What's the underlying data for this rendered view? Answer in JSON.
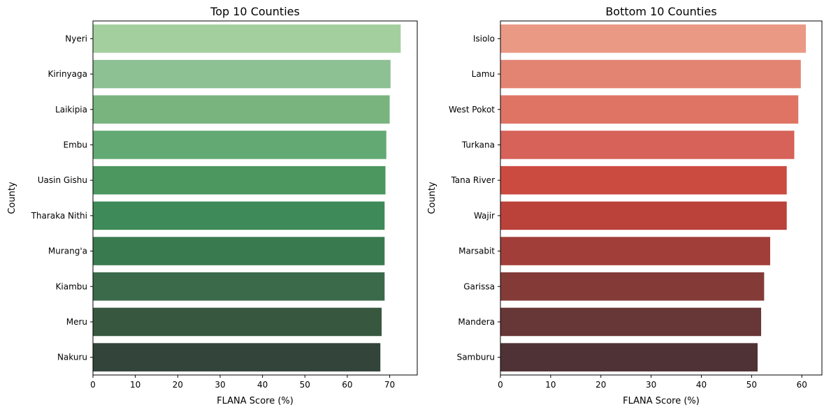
{
  "chart_data": [
    {
      "type": "bar",
      "orientation": "horizontal",
      "title": "Top 10 Counties",
      "xlabel": "FLANA Score (%)",
      "ylabel": "County",
      "xlim": [
        0,
        76.5
      ],
      "xticks": [
        0,
        10,
        20,
        30,
        40,
        50,
        60,
        70
      ],
      "grid": false,
      "categories": [
        "Nyeri",
        "Kirinyaga",
        "Laikipia",
        "Embu",
        "Uasin Gishu",
        "Tharaka Nithi",
        "Murang'a",
        "Kiambu",
        "Meru",
        "Nakuru"
      ],
      "values": [
        72.6,
        70.2,
        70.0,
        69.2,
        69.0,
        68.8,
        68.8,
        68.8,
        68.1,
        67.8
      ],
      "colors": [
        "#a3cf9f",
        "#8dc093",
        "#79b47f",
        "#63a973",
        "#4b975f",
        "#3e8a58",
        "#3a7a4f",
        "#3a6a4a",
        "#38573f",
        "#33443a"
      ]
    },
    {
      "type": "bar",
      "orientation": "horizontal",
      "title": "Bottom 10 Counties",
      "xlabel": "FLANA Score (%)",
      "ylabel": "County",
      "xlim": [
        0,
        64
      ],
      "xticks": [
        0,
        10,
        20,
        30,
        40,
        50,
        60
      ],
      "grid": false,
      "categories": [
        "Isiolo",
        "Lamu",
        "West Pokot",
        "Turkana",
        "Tana River",
        "Wajir",
        "Marsabit",
        "Garissa",
        "Mandera",
        "Samburu"
      ],
      "values": [
        60.8,
        59.8,
        59.3,
        58.5,
        57.0,
        57.0,
        53.7,
        52.5,
        51.9,
        51.2
      ],
      "colors": [
        "#ea9985",
        "#e38473",
        "#df7465",
        "#d66259",
        "#cc4b41",
        "#bb423a",
        "#a23e39",
        "#843b38",
        "#673636",
        "#4f3235"
      ]
    }
  ]
}
